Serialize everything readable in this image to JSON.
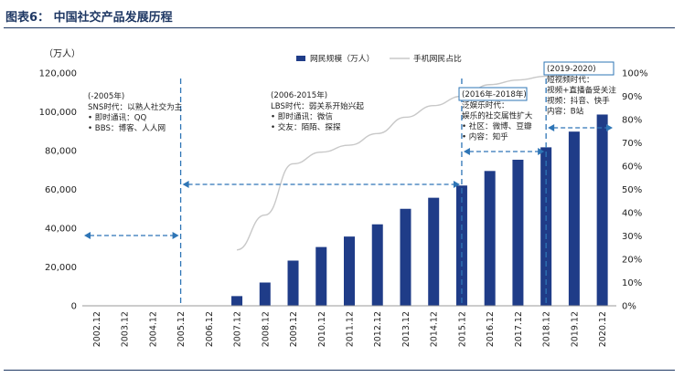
{
  "figure_title": "图表6：   中国社交产品发展历程",
  "chart_data": {
    "type": "bar",
    "y_unit_label": "（万人）",
    "categories": [
      "2002.12",
      "2003.12",
      "2004.12",
      "2005.12",
      "2006.12",
      "2007.12",
      "2008.12",
      "2009.12",
      "2010.12",
      "2011.12",
      "2012.12",
      "2013.12",
      "2014.12",
      "2015.12",
      "2016.12",
      "2017.12",
      "2018.12",
      "2019.12",
      "2020.12"
    ],
    "series": [
      {
        "name": "网民规模（万人）",
        "type": "bar",
        "axis": "left",
        "color": "#1f3c88",
        "values": [
          null,
          null,
          null,
          null,
          null,
          5000,
          12000,
          23300,
          30300,
          35700,
          42000,
          50000,
          55700,
          62000,
          69500,
          75300,
          81700,
          89800,
          98600
        ]
      },
      {
        "name": "手机网民占比",
        "type": "line",
        "axis": "right",
        "color": "#c8c8c8",
        "values": [
          null,
          null,
          null,
          null,
          null,
          0.24,
          0.39,
          0.61,
          0.66,
          0.69,
          0.74,
          0.81,
          0.86,
          0.9,
          0.95,
          0.97,
          0.986,
          0.993,
          0.997
        ]
      }
    ],
    "y_left": {
      "min": 0,
      "max": 120000,
      "ticks": [
        "0",
        "20,000",
        "40,000",
        "60,000",
        "80,000",
        "100,000",
        "120,000"
      ]
    },
    "y_right": {
      "min": 0,
      "max": 1,
      "ticks": [
        "0%",
        "10%",
        "20%",
        "30%",
        "40%",
        "50%",
        "60%",
        "70%",
        "80%",
        "90%",
        "100%"
      ]
    },
    "legend_position": "top"
  },
  "annotations": [
    {
      "period": "(-2005年)",
      "lines": [
        "SNS时代：以熟人社交为主",
        "•  即时通讯：QQ",
        "•  BBS：博客、人人网"
      ]
    },
    {
      "period": "(2006-2015年)",
      "lines": [
        "LBS时代：弱关系开始兴起",
        "•  即时通讯：微信",
        "•  交友：陌陌、探探"
      ]
    },
    {
      "period": "(2016年-2018年)",
      "lines": [
        "泛娱乐时代：",
        "娱乐的社交属性扩大",
        "•  社区：微博、豆瓣",
        "•  内容：知乎"
      ]
    },
    {
      "period": "(2019-2020)",
      "lines": [
        "短视频时代：",
        "视频+直播备受关注",
        "视频：抖音、快手",
        "内容：B站"
      ]
    }
  ]
}
